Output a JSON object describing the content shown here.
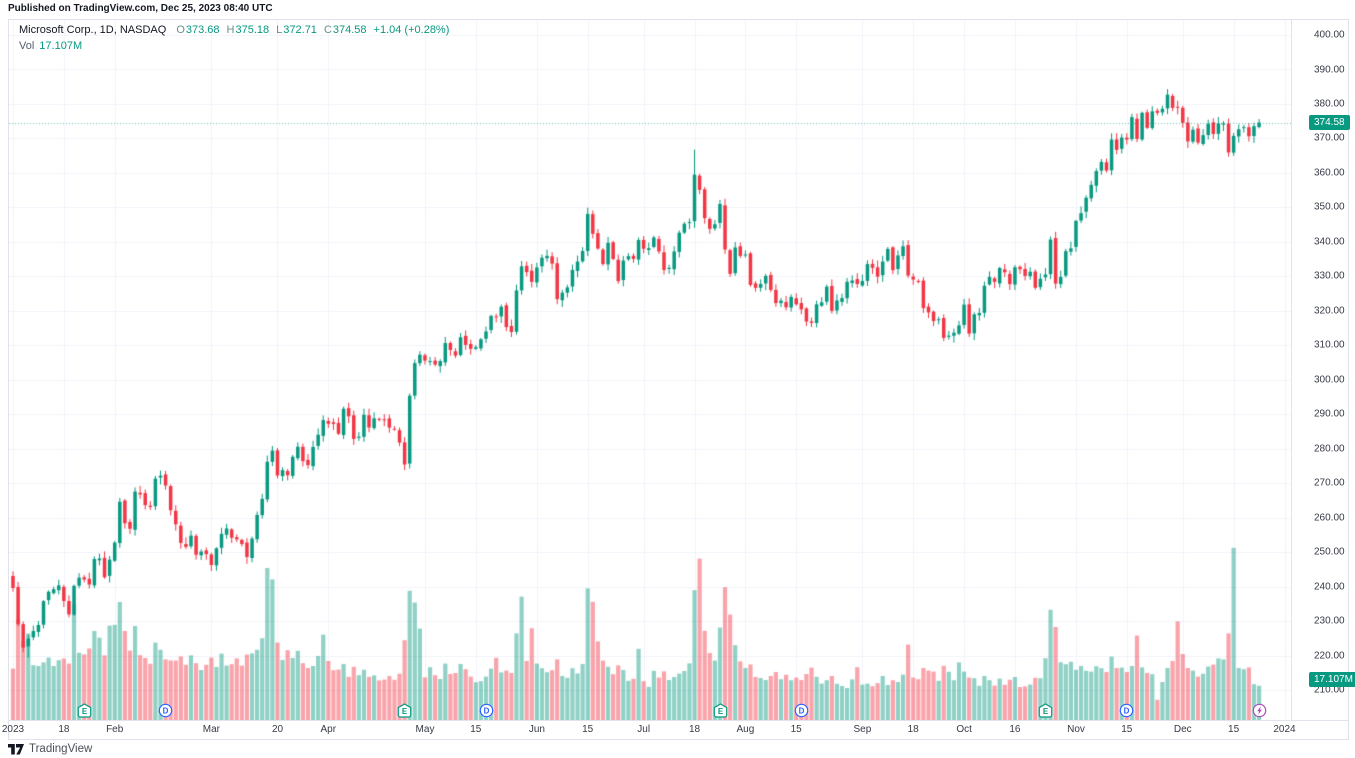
{
  "published_line": "Published on TradingView.com, Dec 25, 2023 08:40 UTC",
  "header": {
    "symbol_line": "Microsoft Corp., 1D, NASDAQ",
    "ohlc": [
      {
        "k": "O",
        "v": "373.68"
      },
      {
        "k": "H",
        "v": "375.18"
      },
      {
        "k": "L",
        "v": "372.71"
      },
      {
        "k": "C",
        "v": "374.58"
      }
    ],
    "change": "+1.04 (+0.28%)",
    "vol_label": "Vol",
    "vol_value": "17.107M"
  },
  "price_axis": {
    "min": 210,
    "max": 400,
    "step": 10,
    "decimals": 2,
    "last_price_badge": "374.58",
    "volume_badge": "17.107M"
  },
  "time_axis": {
    "ticks": [
      {
        "i": 0,
        "label": "2023"
      },
      {
        "i": 10,
        "label": "18"
      },
      {
        "i": 20,
        "label": "Feb"
      },
      {
        "i": 39,
        "label": "Mar"
      },
      {
        "i": 52,
        "label": "20"
      },
      {
        "i": 62,
        "label": "Apr"
      },
      {
        "i": 81,
        "label": "May"
      },
      {
        "i": 91,
        "label": "15"
      },
      {
        "i": 103,
        "label": "Jun"
      },
      {
        "i": 113,
        "label": "15"
      },
      {
        "i": 124,
        "label": "Jul"
      },
      {
        "i": 134,
        "label": "18"
      },
      {
        "i": 144,
        "label": "Aug"
      },
      {
        "i": 154,
        "label": "15"
      },
      {
        "i": 167,
        "label": "Sep"
      },
      {
        "i": 177,
        "label": "18"
      },
      {
        "i": 187,
        "label": "Oct"
      },
      {
        "i": 197,
        "label": "16"
      },
      {
        "i": 209,
        "label": "Nov"
      },
      {
        "i": 219,
        "label": "15"
      },
      {
        "i": 230,
        "label": "Dec"
      },
      {
        "i": 240,
        "label": "15"
      },
      {
        "i": 250,
        "label": "2024"
      }
    ]
  },
  "event_markers": {
    "items": [
      {
        "i": 14,
        "type": "earnings"
      },
      {
        "i": 30,
        "type": "dividend"
      },
      {
        "i": 77,
        "type": "earnings"
      },
      {
        "i": 93,
        "type": "dividend"
      },
      {
        "i": 139,
        "type": "earnings"
      },
      {
        "i": 155,
        "type": "dividend"
      },
      {
        "i": 203,
        "type": "earnings"
      },
      {
        "i": 219,
        "type": "dividend"
      },
      {
        "i": 245,
        "type": "flash"
      }
    ],
    "glyphs": {
      "earnings": "E",
      "dividend": "D",
      "flash": "⚡"
    }
  },
  "brand": {
    "name": "TradingView"
  },
  "colors": {
    "up": "#089981",
    "down": "#f23645",
    "vol_up": "rgba(8,153,129,0.45)",
    "vol_down": "rgba(242,54,69,0.45)",
    "grid": "#f0f3fa",
    "axis_border": "#e0e3eb",
    "axis_text": "#363a45",
    "badge_bg": "#089981",
    "last_price_line": "rgba(8,153,129,0.6)",
    "earnings": "#089981",
    "dividend": "#2962ff",
    "flash": "#ab47bc"
  },
  "chart_data": {
    "type": "candlestick_with_volume",
    "title": "Microsoft Corp., 1D, NASDAQ",
    "x_domain": "2023 trading days, Jan 3 - Dec 22",
    "y_range": [
      210,
      400
    ],
    "grid": true,
    "last_close": 374.58,
    "last_volume_m": 17.107,
    "first_open": 243.08,
    "noise_seed": 42,
    "high_overrides": {
      "134": 366.78,
      "227": 384.3
    },
    "low_overrides": {
      "3": 219.35
    },
    "closes": [
      239.58,
      229.1,
      222.31,
      224.93,
      227.12,
      228.85,
      235.77,
      238.51,
      239.23,
      240.35,
      235.81,
      231.93,
      240.22,
      242.58,
      242.04,
      240.61,
      248.0,
      248.16,
      242.71,
      247.81,
      252.75,
      264.6,
      258.35,
      256.77,
      267.56,
      266.73,
      263.62,
      263.1,
      271.32,
      272.17,
      269.32,
      262.15,
      258.06,
      252.67,
      251.51,
      254.77,
      249.22,
      250.16,
      249.42,
      246.27,
      251.11,
      255.29,
      256.87,
      254.15,
      253.7,
      252.32,
      248.59,
      253.92,
      260.79,
      265.44,
      276.2,
      279.43,
      272.23,
      273.78,
      272.29,
      277.66,
      280.57,
      276.38,
      275.23,
      280.51,
      284.05,
      288.3,
      287.23,
      287.18,
      284.34,
      291.6,
      289.39,
      282.83,
      283.49,
      289.84,
      286.14,
      288.8,
      288.37,
      288.45,
      286.11,
      285.76,
      281.77,
      275.42,
      295.37,
      304.83,
      307.26,
      305.56,
      305.41,
      304.4,
      305.41,
      310.65,
      308.65,
      307.0,
      312.31,
      310.11,
      308.97,
      309.46,
      311.74,
      314.0,
      318.52,
      318.34,
      321.18,
      315.26,
      313.85,
      325.92,
      332.89,
      331.21,
      328.39,
      332.58,
      335.4,
      335.94,
      333.68,
      323.38,
      325.26,
      326.79,
      331.85,
      334.29,
      337.34,
      348.1,
      342.33,
      338.05,
      333.56,
      339.71,
      335.02,
      328.6,
      334.57,
      335.85,
      335.05,
      340.54,
      337.99,
      338.15,
      341.27,
      337.22,
      331.83,
      332.47,
      337.2,
      342.66,
      345.24,
      345.73,
      359.49,
      355.08,
      346.87,
      343.77,
      345.11,
      350.98,
      337.77,
      330.72,
      338.37,
      335.92,
      336.34,
      327.5,
      326.66,
      327.78,
      330.11,
      326.05,
      322.23,
      322.96,
      321.01,
      324.04,
      321.88,
      320.4,
      316.88,
      316.48,
      321.88,
      322.46,
      327.0,
      319.97,
      322.98,
      323.7,
      328.41,
      328.79,
      327.76,
      328.66,
      333.55,
      332.47,
      329.91,
      334.27,
      337.94,
      331.77,
      336.06,
      338.7,
      330.22,
      329.06,
      328.65,
      320.77,
      319.53,
      317.01,
      317.54,
      312.14,
      312.79,
      313.64,
      315.75,
      321.8,
      313.39,
      318.96,
      319.36,
      327.26,
      329.82,
      328.39,
      332.42,
      331.16,
      327.73,
      332.64,
      332.06,
      330.11,
      331.32,
      326.67,
      329.32,
      330.53,
      340.67,
      327.89,
      329.81,
      337.31,
      338.11,
      346.07,
      348.32,
      352.8,
      356.53,
      360.53,
      363.2,
      360.69,
      369.67,
      366.68,
      370.27,
      369.67,
      376.17,
      369.85,
      377.44,
      373.07,
      377.85,
      377.43,
      378.61,
      382.7,
      378.85,
      378.91,
      374.51,
      369.14,
      372.52,
      368.8,
      370.95,
      374.23,
      371.3,
      374.38,
      374.37,
      365.93,
      370.73,
      372.65,
      373.26,
      370.62,
      373.54,
      374.58
    ],
    "volumes_m": [
      25.7,
      50.6,
      39.6,
      43.3,
      27.4,
      27.0,
      28.8,
      31.2,
      27.0,
      29.9,
      30.7,
      28.2,
      57.8,
      33.6,
      32.8,
      35.8,
      44.5,
      41.2,
      32.3,
      47.2,
      47.6,
      59.0,
      44.5,
      34.7,
      47.0,
      32.4,
      31.0,
      28.1,
      38.7,
      35.1,
      30.3,
      29.8,
      29.7,
      31.8,
      27.6,
      32.3,
      28.4,
      25.0,
      27.6,
      31.2,
      26.5,
      33.2,
      27.2,
      27.9,
      30.8,
      27.2,
      32.7,
      33.3,
      35.1,
      40.9,
      76.0,
      70.3,
      38.7,
      30.0,
      34.9,
      31.0,
      34.6,
      28.4,
      26.0,
      27.0,
      32.0,
      42.7,
      29.5,
      24.9,
      25.2,
      28.0,
      21.6,
      26.6,
      22.4,
      25.1,
      21.6,
      22.3,
      19.8,
      20.2,
      22.0,
      20.1,
      23.1,
      39.9,
      64.6,
      58.7,
      45.7,
      21.3,
      26.4,
      22.4,
      20.5,
      28.2,
      23.0,
      23.5,
      28.0,
      25.4,
      21.7,
      18.9,
      19.4,
      21.7,
      25.7,
      31.1,
      23.8,
      24.7,
      23.5,
      43.3,
      61.7,
      29.5,
      45.9,
      28.2,
      25.9,
      23.9,
      24.9,
      30.3,
      22.0,
      21.1,
      25.9,
      23.3,
      28.0,
      65.8,
      59.1,
      39.3,
      29.7,
      26.6,
      22.9,
      27.3,
      25.0,
      19.6,
      20.6,
      35.6,
      19.4,
      16.6,
      24.6,
      21.2,
      24.3,
      20.0,
      21.5,
      23.2,
      24.5,
      28.3,
      64.9,
      80.7,
      44.6,
      33.5,
      29.7,
      46.2,
      66.4,
      52.7,
      37.4,
      29.3,
      26.0,
      27.8,
      21.5,
      21.0,
      20.0,
      22.0,
      24.0,
      20.4,
      22.6,
      19.9,
      21.2,
      20.0,
      23.0,
      26.2,
      21.6,
      18.2,
      19.9,
      22.0,
      18.1,
      17.0,
      16.0,
      20.3,
      26.4,
      17.7,
      18.2,
      16.9,
      18.4,
      22.0,
      17.5,
      19.9,
      19.0,
      22.7,
      37.7,
      21.2,
      20.4,
      26.0,
      24.7,
      24.2,
      19.6,
      27.1,
      24.1,
      19.9,
      28.8,
      24.2,
      21.2,
      20.9,
      17.1,
      22.0,
      19.9,
      17.2,
      20.7,
      17.6,
      20.1,
      21.5,
      16.5,
      16.8,
      17.7,
      21.1,
      20.9,
      30.9,
      55.1,
      46.5,
      28.9,
      27.9,
      29.1,
      25.1,
      27.0,
      24.6,
      24.2,
      26.9,
      25.9,
      24.0,
      31.7,
      26.0,
      26.2,
      24.0,
      27.0,
      42.2,
      26.3,
      23.5,
      22.9,
      10.1,
      19.0,
      26.0,
      29.5,
      49.3,
      33.0,
      26.0,
      24.7,
      21.7,
      23.1,
      26.7,
      27.7,
      30.8,
      30.3,
      43.3,
      86.1,
      26.0,
      25.4,
      26.3,
      17.9,
      17.107
    ]
  }
}
